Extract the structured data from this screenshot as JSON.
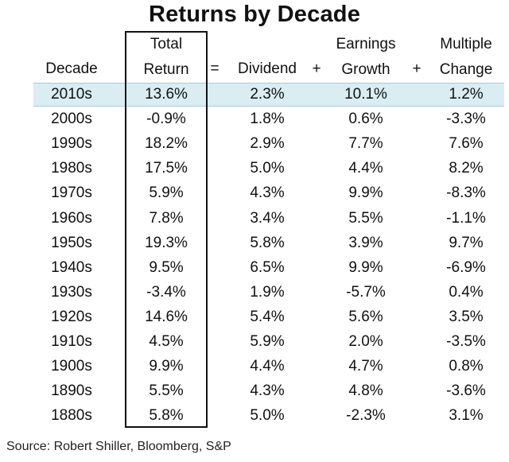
{
  "chart_data": {
    "type": "table",
    "title": "Returns by Decade",
    "columns": {
      "decade": "Decade",
      "total_return_1": "Total",
      "total_return_2": "Return",
      "dividend": "Dividend",
      "earnings_1": "Earnings",
      "earnings_2": "Growth",
      "multiple_1": "Multiple",
      "multiple_2": "Change"
    },
    "operators": {
      "equals": "=",
      "plus1": "+",
      "plus2": "+"
    },
    "rows": [
      {
        "decade": "2010s",
        "total": "13.6%",
        "dividend": "2.3%",
        "earnings": "10.1%",
        "multiple": "1.2%"
      },
      {
        "decade": "2000s",
        "total": "-0.9%",
        "dividend": "1.8%",
        "earnings": "0.6%",
        "multiple": "-3.3%"
      },
      {
        "decade": "1990s",
        "total": "18.2%",
        "dividend": "2.9%",
        "earnings": "7.7%",
        "multiple": "7.6%"
      },
      {
        "decade": "1980s",
        "total": "17.5%",
        "dividend": "5.0%",
        "earnings": "4.4%",
        "multiple": "8.2%"
      },
      {
        "decade": "1970s",
        "total": "5.9%",
        "dividend": "4.3%",
        "earnings": "9.9%",
        "multiple": "-8.3%"
      },
      {
        "decade": "1960s",
        "total": "7.8%",
        "dividend": "3.4%",
        "earnings": "5.5%",
        "multiple": "-1.1%"
      },
      {
        "decade": "1950s",
        "total": "19.3%",
        "dividend": "5.8%",
        "earnings": "3.9%",
        "multiple": "9.7%"
      },
      {
        "decade": "1940s",
        "total": "9.5%",
        "dividend": "6.5%",
        "earnings": "9.9%",
        "multiple": "-6.9%"
      },
      {
        "decade": "1930s",
        "total": "-3.4%",
        "dividend": "1.9%",
        "earnings": "-5.7%",
        "multiple": "0.4%"
      },
      {
        "decade": "1920s",
        "total": "14.6%",
        "dividend": "5.4%",
        "earnings": "5.6%",
        "multiple": "3.5%"
      },
      {
        "decade": "1910s",
        "total": "4.5%",
        "dividend": "5.9%",
        "earnings": "2.0%",
        "multiple": "-3.5%"
      },
      {
        "decade": "1900s",
        "total": "9.9%",
        "dividend": "4.4%",
        "earnings": "4.7%",
        "multiple": "0.8%"
      },
      {
        "decade": "1890s",
        "total": "5.5%",
        "dividend": "4.3%",
        "earnings": "4.8%",
        "multiple": "-3.6%"
      },
      {
        "decade": "1880s",
        "total": "5.8%",
        "dividend": "5.0%",
        "earnings": "-2.3%",
        "multiple": "3.1%"
      }
    ],
    "highlight_color": "#d9edf3"
  },
  "source": "Source: Robert Shiller, Bloomberg, S&P"
}
